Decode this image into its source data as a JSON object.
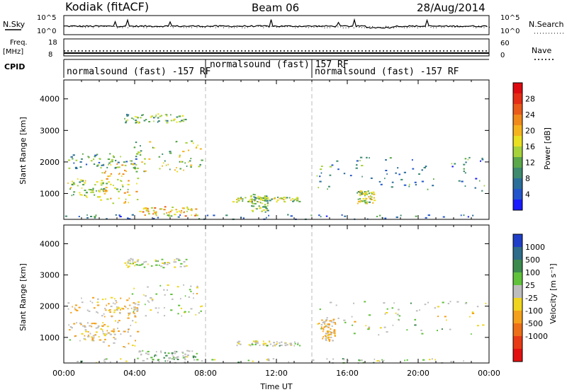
{
  "header": {
    "station": "Kodiak (fitACF)",
    "beam": "Beam 06",
    "date": "28/Aug/2014"
  },
  "top_strips": {
    "nsky_label": "N.Sky",
    "nsearch_label": "N.Search",
    "noise_left_ticks": [
      "10^5",
      "10^0"
    ],
    "noise_right_ticks": [
      "10^5",
      "10^0"
    ],
    "freq_label": "Freq.",
    "freq_unit": "[MHz]",
    "freq_ticks": [
      "18",
      "8"
    ],
    "nave_label": "Nave",
    "nave_ticks": [
      "60",
      "0"
    ],
    "cpid_label": "CPID",
    "cpid_segments": [
      {
        "label": "normalsound (fast) -157 RF",
        "start_hour": 0,
        "end_hour": 8
      },
      {
        "label": "normalsound (fast) 157 RF",
        "start_hour": 8,
        "end_hour": 14
      },
      {
        "label": "normalsound (fast) -157 RF",
        "start_hour": 14,
        "end_hour": 24
      }
    ]
  },
  "chart_data": [
    {
      "type": "heatmap",
      "panel": "power",
      "xlabel": "",
      "ylabel": "Slant Range [km]",
      "xlim": [
        0,
        24
      ],
      "ylim": [
        180,
        4600
      ],
      "yticks": [
        1000,
        2000,
        3000,
        4000
      ],
      "colorbar": {
        "label": "Power [dB]",
        "range": [
          0,
          32
        ],
        "ticks": [
          "4",
          "8",
          "12",
          "16",
          "20",
          "24",
          "28"
        ],
        "colors": [
          "#1a1aff",
          "#2255cc",
          "#2a6e9a",
          "#3d8a6f",
          "#5aa84a",
          "#a6d23a",
          "#e8e021",
          "#f5b41e",
          "#f08a1a",
          "#ea5a18",
          "#e52d15",
          "#dd0a10"
        ]
      },
      "scatter_regions": [
        {
          "t0": 3.4,
          "t1": 6.9,
          "r0": 3250,
          "r1": 3550,
          "mean_db": 13
        },
        {
          "t0": 0.2,
          "t1": 4.2,
          "r0": 1800,
          "r1": 2300,
          "mean_db": 10
        },
        {
          "t0": 3.8,
          "t1": 7.8,
          "r0": 1700,
          "r1": 2700,
          "mean_db": 15
        },
        {
          "t0": 0.1,
          "t1": 2.5,
          "r0": 900,
          "r1": 1500,
          "mean_db": 14
        },
        {
          "t0": 2.0,
          "t1": 4.2,
          "r0": 700,
          "r1": 2000,
          "mean_db": 18
        },
        {
          "t0": 4.2,
          "t1": 7.5,
          "r0": 300,
          "r1": 600,
          "mean_db": 20
        },
        {
          "t0": 9.5,
          "t1": 13.3,
          "r0": 750,
          "r1": 900,
          "mean_db": 15
        },
        {
          "t0": 10.5,
          "t1": 11.5,
          "r0": 400,
          "r1": 1000,
          "mean_db": 12
        },
        {
          "t0": 14.2,
          "t1": 24.0,
          "r0": 1100,
          "r1": 2200,
          "mean_db": 8
        },
        {
          "t0": 16.5,
          "t1": 17.5,
          "r0": 700,
          "r1": 1100,
          "mean_db": 16
        },
        {
          "t0": 0.0,
          "t1": 24.0,
          "r0": 200,
          "r1": 350,
          "mean_db": 7
        }
      ]
    },
    {
      "type": "heatmap",
      "panel": "velocity",
      "xlabel": "Time UT",
      "ylabel": "Slant Range [km]",
      "xlim": [
        0,
        24
      ],
      "ylim": [
        180,
        4600
      ],
      "xticks": [
        "00:00",
        "04:00",
        "08:00",
        "12:00",
        "16:00",
        "20:00",
        "00:00"
      ],
      "yticks": [
        1000,
        2000,
        3000,
        4000
      ],
      "colorbar": {
        "label": "Velocity [m s⁻¹]",
        "ticks": [
          "1000",
          "500",
          "100",
          "25",
          "-25",
          "-100",
          "-500",
          "-1000"
        ],
        "colors": [
          "#1f3fc8",
          "#2e6c8a",
          "#3d8a4e",
          "#5fc23a",
          "#bdbdbd",
          "#f0d51e",
          "#f5a01a",
          "#ed6f17",
          "#e83a15",
          "#e31010"
        ]
      },
      "scatter_regions": [
        {
          "t0": 3.4,
          "t1": 6.9,
          "r0": 3250,
          "r1": 3550,
          "mean_v": 0
        },
        {
          "t0": 0.2,
          "t1": 4.2,
          "r0": 1800,
          "r1": 2300,
          "mean_v": -150
        },
        {
          "t0": 3.8,
          "t1": 7.8,
          "r0": 1700,
          "r1": 2700,
          "mean_v": 0
        },
        {
          "t0": 0.1,
          "t1": 2.5,
          "r0": 900,
          "r1": 1500,
          "mean_v": -80
        },
        {
          "t0": 2.0,
          "t1": 4.2,
          "r0": 700,
          "r1": 2000,
          "mean_v": -120
        },
        {
          "t0": 4.2,
          "t1": 7.5,
          "r0": 300,
          "r1": 600,
          "mean_v": 80
        },
        {
          "t0": 9.5,
          "t1": 13.3,
          "r0": 750,
          "r1": 900,
          "mean_v": 0
        },
        {
          "t0": 14.2,
          "t1": 24.0,
          "r0": 1100,
          "r1": 2200,
          "mean_v": 0
        },
        {
          "t0": 14.5,
          "t1": 15.3,
          "r0": 900,
          "r1": 1600,
          "mean_v": -200
        },
        {
          "t0": 0.0,
          "t1": 24.0,
          "r0": 200,
          "r1": 350,
          "mean_v": 30
        }
      ]
    }
  ]
}
